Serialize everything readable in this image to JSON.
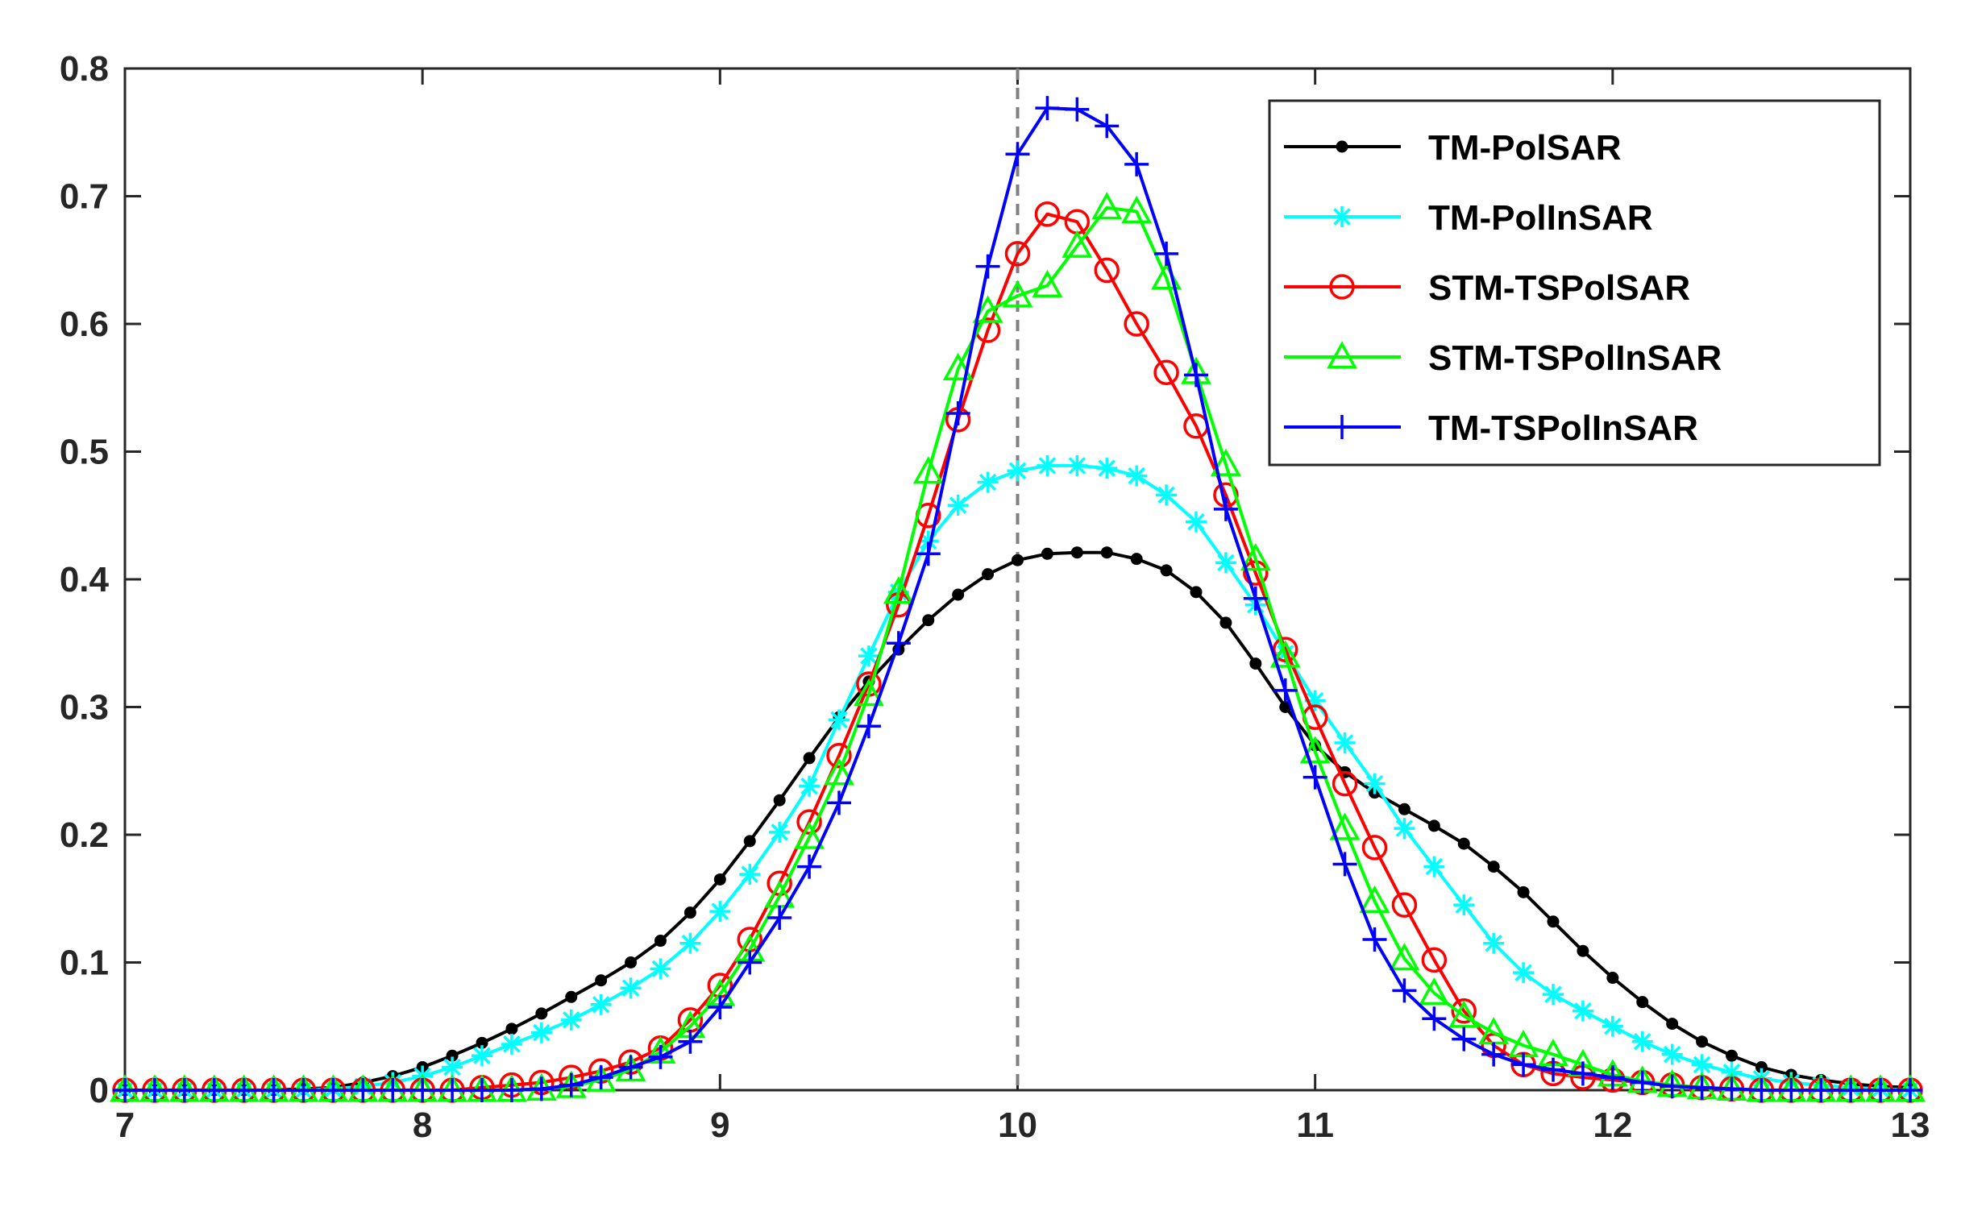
{
  "chart_data": {
    "type": "line",
    "title": "",
    "xlabel": "",
    "ylabel": "",
    "xlim": [
      7,
      13
    ],
    "ylim": [
      0,
      0.8
    ],
    "grid": false,
    "legend_position": "top-right",
    "reference_line": {
      "x": 10,
      "style": "dashed",
      "color": "#808080"
    },
    "x_ticks": [
      7,
      8,
      9,
      10,
      11,
      12,
      13
    ],
    "x_tick_labels": [
      "7",
      "8",
      "9",
      "10",
      "11",
      "12",
      "13"
    ],
    "y_ticks": [
      0,
      0.1,
      0.2,
      0.3,
      0.4,
      0.5,
      0.6,
      0.7,
      0.8
    ],
    "y_tick_labels": [
      "0",
      "0.1",
      "0.2",
      "0.3",
      "0.4",
      "0.5",
      "0.6",
      "0.7",
      "0.8"
    ],
    "x": [
      7.0,
      7.1,
      7.2,
      7.3,
      7.4,
      7.5,
      7.6,
      7.7,
      7.8,
      7.9,
      8.0,
      8.1,
      8.2,
      8.3,
      8.4,
      8.5,
      8.6,
      8.7,
      8.8,
      8.9,
      9.0,
      9.1,
      9.2,
      9.3,
      9.4,
      9.5,
      9.6,
      9.7,
      9.8,
      9.9,
      10.0,
      10.1,
      10.2,
      10.3,
      10.4,
      10.5,
      10.6,
      10.7,
      10.8,
      10.9,
      11.0,
      11.1,
      11.2,
      11.3,
      11.4,
      11.5,
      11.6,
      11.7,
      11.8,
      11.9,
      12.0,
      12.1,
      12.2,
      12.3,
      12.4,
      12.5,
      12.6,
      12.7,
      12.8,
      12.9,
      13.0
    ],
    "series": [
      {
        "name": "TM-PolSAR",
        "color": "#000000",
        "marker": "dot",
        "values": [
          0.0,
          0.0,
          0.0,
          0.0,
          0.0,
          0.0,
          0.001,
          0.002,
          0.006,
          0.011,
          0.018,
          0.027,
          0.037,
          0.048,
          0.06,
          0.073,
          0.086,
          0.1,
          0.117,
          0.139,
          0.165,
          0.195,
          0.227,
          0.26,
          0.292,
          0.32,
          0.345,
          0.368,
          0.388,
          0.404,
          0.415,
          0.42,
          0.421,
          0.421,
          0.416,
          0.407,
          0.39,
          0.366,
          0.334,
          0.3,
          0.27,
          0.249,
          0.233,
          0.22,
          0.207,
          0.193,
          0.175,
          0.155,
          0.132,
          0.109,
          0.088,
          0.069,
          0.052,
          0.038,
          0.027,
          0.018,
          0.012,
          0.008,
          0.005,
          0.003,
          0.002
        ]
      },
      {
        "name": "TM-PolInSAR",
        "color": "#00FFFF",
        "marker": "asterisk",
        "values": [
          0.0,
          0.0,
          0.0,
          0.0,
          0.0,
          0.0,
          0.0,
          0.001,
          0.003,
          0.006,
          0.011,
          0.018,
          0.027,
          0.036,
          0.045,
          0.055,
          0.067,
          0.08,
          0.095,
          0.115,
          0.14,
          0.169,
          0.202,
          0.238,
          0.29,
          0.34,
          0.39,
          0.43,
          0.458,
          0.476,
          0.485,
          0.489,
          0.489,
          0.487,
          0.481,
          0.466,
          0.445,
          0.413,
          0.38,
          0.342,
          0.305,
          0.272,
          0.24,
          0.205,
          0.175,
          0.145,
          0.115,
          0.092,
          0.075,
          0.062,
          0.05,
          0.038,
          0.028,
          0.02,
          0.014,
          0.009,
          0.006,
          0.004,
          0.002,
          0.001,
          0.0
        ]
      },
      {
        "name": "STM-TSPolSAR",
        "color": "#FF0000",
        "marker": "circle",
        "values": [
          0.0,
          0.0,
          0.0,
          0.0,
          0.0,
          0.0,
          0.0,
          0.0,
          0.0,
          0.0,
          0.0,
          0.0,
          0.002,
          0.004,
          0.006,
          0.01,
          0.015,
          0.022,
          0.033,
          0.055,
          0.082,
          0.118,
          0.162,
          0.21,
          0.262,
          0.318,
          0.38,
          0.45,
          0.525,
          0.595,
          0.655,
          0.686,
          0.68,
          0.642,
          0.6,
          0.562,
          0.52,
          0.466,
          0.405,
          0.345,
          0.292,
          0.24,
          0.19,
          0.145,
          0.102,
          0.062,
          0.035,
          0.02,
          0.013,
          0.01,
          0.008,
          0.006,
          0.004,
          0.002,
          0.001,
          0.0,
          0.0,
          0.0,
          0.0,
          0.0,
          0.0
        ]
      },
      {
        "name": "STM-TSPolInSAR",
        "color": "#00FF00",
        "marker": "triangle",
        "values": [
          0.0,
          0.0,
          0.0,
          0.0,
          0.0,
          0.0,
          0.0,
          0.0,
          0.0,
          0.0,
          0.0,
          0.0,
          0.0,
          0.0,
          0.001,
          0.003,
          0.008,
          0.016,
          0.03,
          0.05,
          0.075,
          0.11,
          0.152,
          0.198,
          0.248,
          0.31,
          0.39,
          0.484,
          0.565,
          0.61,
          0.622,
          0.63,
          0.661,
          0.691,
          0.688,
          0.636,
          0.562,
          0.49,
          0.416,
          0.34,
          0.265,
          0.205,
          0.148,
          0.103,
          0.076,
          0.058,
          0.045,
          0.035,
          0.028,
          0.02,
          0.012,
          0.007,
          0.004,
          0.002,
          0.001,
          0.0,
          0.0,
          0.0,
          0.0,
          0.0,
          0.0
        ]
      },
      {
        "name": "TM-TSPolInSAR",
        "color": "#0000FF",
        "marker": "plus",
        "values": [
          0.0,
          0.0,
          0.0,
          0.0,
          0.0,
          0.0,
          0.0,
          0.0,
          0.0,
          0.0,
          0.0,
          0.0,
          0.0,
          0.0,
          0.001,
          0.004,
          0.01,
          0.018,
          0.026,
          0.038,
          0.065,
          0.1,
          0.135,
          0.175,
          0.225,
          0.285,
          0.35,
          0.42,
          0.53,
          0.645,
          0.733,
          0.769,
          0.768,
          0.755,
          0.725,
          0.655,
          0.56,
          0.455,
          0.385,
          0.313,
          0.245,
          0.177,
          0.118,
          0.078,
          0.056,
          0.04,
          0.028,
          0.02,
          0.016,
          0.013,
          0.01,
          0.006,
          0.003,
          0.002,
          0.001,
          0.0,
          0.0,
          0.0,
          0.0,
          0.0,
          0.0
        ]
      }
    ]
  }
}
